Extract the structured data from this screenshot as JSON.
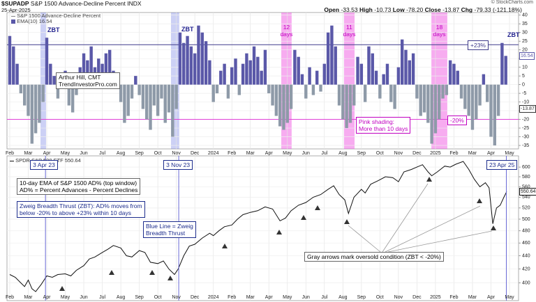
{
  "header": {
    "symbol": "$SUPADP",
    "source": "© StockCharts.com"
  },
  "chart_data": [
    {
      "type": "bar",
      "title": "S&P 1500 Advance-Decline Percent",
      "exchange": "INDX",
      "date": "25-Apr-2025",
      "quote": [
        {
          "label": "Open",
          "value": -33.53
        },
        {
          "label": "High",
          "value": -10.73
        },
        {
          "label": "Low",
          "value": -78.2,
          "value_label": "-78.20"
        },
        {
          "label": "Close",
          "value": -13.87
        },
        {
          "label": "Chg",
          "value": -79.33,
          "value_label": "-79.33 (-121.18%)"
        }
      ],
      "xlim": [
        0.85,
        28.49
      ],
      "ylim": [
        -37,
        41.5
      ],
      "xticks": [
        {
          "value": 1,
          "label": "Feb"
        },
        {
          "value": 2,
          "label": "Mar"
        },
        {
          "value": 3,
          "label": "Apr"
        },
        {
          "value": 4,
          "label": "May"
        },
        {
          "value": 5,
          "label": "Jun"
        },
        {
          "value": 6,
          "label": "Jul"
        },
        {
          "value": 7,
          "label": "Aug"
        },
        {
          "value": 8,
          "label": "Sep"
        },
        {
          "value": 9,
          "label": "Oct"
        },
        {
          "value": 10,
          "label": "Nov"
        },
        {
          "value": 11,
          "label": "Dec"
        },
        {
          "value": 12,
          "label": "2024"
        },
        {
          "value": 13,
          "label": "Feb"
        },
        {
          "value": 14,
          "label": "Mar"
        },
        {
          "value": 15,
          "label": "Apr"
        },
        {
          "value": 16,
          "label": "May"
        },
        {
          "value": 17,
          "label": "Jun"
        },
        {
          "value": 18,
          "label": "Jul"
        },
        {
          "value": 19,
          "label": "Aug"
        },
        {
          "value": 20,
          "label": "Sep"
        },
        {
          "value": 21,
          "label": "Oct"
        },
        {
          "value": 22,
          "label": "Nov"
        },
        {
          "value": 23,
          "label": "Dec"
        },
        {
          "value": 24,
          "label": "2025"
        },
        {
          "value": 25,
          "label": "Feb"
        },
        {
          "value": 26,
          "label": "Mar"
        },
        {
          "value": 27,
          "label": "Apr"
        },
        {
          "value": 28,
          "label": "May"
        }
      ],
      "yticks": [
        40,
        35,
        30,
        25,
        20,
        15,
        10,
        5,
        0,
        -5,
        -10,
        -15,
        -20,
        -25,
        -30,
        -35
      ],
      "grid": true,
      "x": [
        1.0,
        1.2,
        1.4,
        1.6,
        1.8,
        2.0,
        2.2,
        2.4,
        2.6,
        2.8,
        3.0,
        3.2,
        3.4,
        3.6,
        3.8,
        4.0,
        4.2,
        4.4,
        4.6,
        4.8,
        5.0,
        5.2,
        5.4,
        5.6,
        5.8,
        6.0,
        6.2,
        6.4,
        6.6,
        6.8,
        7.0,
        7.2,
        7.4,
        7.6,
        7.8,
        8.0,
        8.2,
        8.4,
        8.6,
        8.8,
        9.0,
        9.2,
        9.4,
        9.6,
        9.8,
        10.0,
        10.2,
        10.4,
        10.6,
        10.8,
        11.0,
        11.2,
        11.4,
        11.6,
        11.8,
        12.0,
        12.2,
        12.4,
        12.6,
        12.8,
        13.0,
        13.2,
        13.4,
        13.6,
        13.8,
        14.0,
        14.2,
        14.4,
        14.6,
        14.8,
        15.0,
        15.2,
        15.4,
        15.6,
        15.8,
        16.0,
        16.2,
        16.4,
        16.6,
        16.8,
        17.0,
        17.2,
        17.4,
        17.6,
        17.8,
        18.0,
        18.2,
        18.4,
        18.6,
        18.8,
        19.0,
        19.2,
        19.4,
        19.6,
        19.8,
        20.0,
        20.2,
        20.4,
        20.6,
        20.8,
        21.0,
        21.2,
        21.4,
        21.6,
        21.8,
        22.0,
        22.2,
        22.4,
        22.6,
        22.8,
        23.0,
        23.2,
        23.4,
        23.6,
        23.8,
        24.0,
        24.2,
        24.4,
        24.6,
        24.8,
        25.0,
        25.2,
        25.4,
        25.6,
        25.8,
        26.0,
        26.2,
        26.4,
        26.6,
        26.8,
        27.0,
        27.2,
        27.4,
        27.6,
        27.8
      ],
      "series": [
        {
          "name": "EMA(10)",
          "last_value": 16.54,
          "color": "#5a58a8",
          "negative_color": "#8e9aa8",
          "values": [
            28,
            22,
            12,
            -5,
            -12,
            -18,
            -34,
            -28,
            -22,
            -10,
            27,
            12,
            5,
            -8,
            3,
            8,
            -12,
            -16,
            -6,
            10,
            18,
            14,
            22,
            10,
            15,
            12,
            18,
            20,
            8,
            5,
            -10,
            -22,
            -18,
            -8,
            5,
            -6,
            -14,
            -20,
            -26,
            -12,
            -18,
            -8,
            -22,
            -16,
            -30,
            -14,
            30,
            24,
            28,
            22,
            18,
            34,
            30,
            25,
            14,
            -10,
            -5,
            8,
            12,
            -8,
            10,
            15,
            -6,
            12,
            18,
            14,
            22,
            16,
            8,
            20,
            -5,
            -12,
            -18,
            -24,
            -26,
            -22,
            -14,
            20,
            16,
            6,
            -8,
            10,
            -6,
            8,
            -4,
            12,
            30,
            34,
            22,
            -12,
            -20,
            -25,
            -22,
            -12,
            16,
            12,
            -10,
            22,
            18,
            8,
            -8,
            6,
            12,
            -10,
            -14,
            10,
            26,
            20,
            14,
            18,
            -8,
            -18,
            -16,
            -22,
            -34,
            -28,
            -20,
            -8,
            -6,
            14,
            12,
            8,
            -8,
            -14,
            -18,
            -26,
            -20,
            -12,
            6,
            -10,
            -30,
            -35,
            -18,
            24,
            16.54
          ]
        }
      ],
      "hlines": [
        {
          "value": 23,
          "label": "+23%",
          "color": "#3f3a8a"
        },
        {
          "value": -20,
          "label": "-20%",
          "color": "#e040d8"
        }
      ],
      "shading": [
        {
          "from": 2.66,
          "to": 2.96,
          "color": "rgba(110,120,225,0.35)"
        },
        {
          "from": 9.71,
          "to": 10.16,
          "color": "rgba(110,120,225,0.35)"
        },
        {
          "from": 15.67,
          "to": 16.23,
          "color": "rgba(240,90,225,0.5)",
          "label": [
            "12",
            "days"
          ]
        },
        {
          "from": 19.06,
          "to": 19.63,
          "color": "rgba(240,90,225,0.5)",
          "label": [
            "11",
            "days"
          ]
        },
        {
          "from": 23.78,
          "to": 24.64,
          "color": "rgba(240,90,225,0.5)",
          "label": [
            "18",
            "days"
          ]
        }
      ],
      "annotations": [
        "ZBT",
        "ZBT",
        "ZBT"
      ],
      "notes": [
        {
          "lines": [
            "Arthur Hill, CMT",
            "TrendInvestorPro.com"
          ]
        },
        {
          "lines": [
            "Pink shading:",
            "More than 10 days"
          ]
        }
      ]
    },
    {
      "type": "line",
      "title": "SPDR S&P 500 ETF",
      "xlim": [
        0.85,
        28.49
      ],
      "ylim": [
        376,
        624
      ],
      "log_scale": true,
      "xticks": [
        {
          "value": 1,
          "label": "Feb"
        },
        {
          "value": 2,
          "label": "Mar"
        },
        {
          "value": 3,
          "label": "Apr"
        },
        {
          "value": 4,
          "label": "May"
        },
        {
          "value": 5,
          "label": "Jun"
        },
        {
          "value": 6,
          "label": "Jul"
        },
        {
          "value": 7,
          "label": "Aug"
        },
        {
          "value": 8,
          "label": "Sep"
        },
        {
          "value": 9,
          "label": "Oct"
        },
        {
          "value": 10,
          "label": "Nov"
        },
        {
          "value": 11,
          "label": "Dec"
        },
        {
          "value": 12,
          "label": "2024"
        },
        {
          "value": 13,
          "label": "Feb"
        },
        {
          "value": 14,
          "label": "Mar"
        },
        {
          "value": 15,
          "label": "Apr"
        },
        {
          "value": 16,
          "label": "May"
        },
        {
          "value": 17,
          "label": "Jun"
        },
        {
          "value": 18,
          "label": "Jul"
        },
        {
          "value": 19,
          "label": "Aug"
        },
        {
          "value": 20,
          "label": "Sep"
        },
        {
          "value": 21,
          "label": "Oct"
        },
        {
          "value": 22,
          "label": "Nov"
        },
        {
          "value": 23,
          "label": "Dec"
        },
        {
          "value": 24,
          "label": "2025"
        },
        {
          "value": 25,
          "label": "Feb"
        },
        {
          "value": 26,
          "label": "Mar"
        },
        {
          "value": 27,
          "label": "Apr"
        },
        {
          "value": 28,
          "label": "May"
        }
      ],
      "yticks": [
        600,
        580,
        560,
        540,
        520,
        500,
        480,
        460,
        440,
        420,
        400
      ],
      "grid": true,
      "x": [
        1.0,
        1.3,
        1.6,
        1.8,
        2.0,
        2.2,
        2.4,
        2.7,
        3.0,
        3.3,
        3.6,
        4.0,
        4.3,
        4.6,
        5.0,
        5.3,
        5.6,
        6.0,
        6.3,
        6.6,
        7.0,
        7.3,
        7.6,
        8.0,
        8.3,
        8.6,
        9.0,
        9.3,
        9.6,
        9.9,
        10.1,
        10.4,
        10.7,
        11.0,
        11.4,
        11.8,
        12.0,
        12.3,
        12.6,
        13.0,
        13.3,
        13.6,
        14.0,
        14.4,
        14.8,
        15.2,
        15.6,
        15.9,
        16.2,
        16.6,
        17.0,
        17.4,
        17.8,
        18.2,
        18.5,
        18.8,
        19.1,
        19.3,
        19.6,
        20.0,
        20.2,
        20.5,
        20.9,
        21.3,
        21.7,
        22.0,
        22.3,
        22.7,
        23.0,
        23.3,
        23.6,
        23.8,
        24.1,
        24.5,
        24.8,
        25.1,
        25.5,
        25.8,
        26.1,
        26.4,
        26.7,
        26.9,
        27.1,
        27.3,
        27.5,
        27.7,
        27.85
      ],
      "series": [
        {
          "name": "SPDR S&P 500 ETF",
          "last_value": 550.64,
          "color": "#111111",
          "values": [
            412,
            408,
            400,
            395,
            404,
            392,
            388,
            398,
            410,
            408,
            412,
            413,
            410,
            418,
            425,
            435,
            438,
            445,
            450,
            456,
            452,
            440,
            438,
            448,
            445,
            430,
            428,
            432,
            420,
            412,
            420,
            440,
            455,
            458,
            468,
            476,
            472,
            480,
            487,
            490,
            500,
            508,
            512,
            515,
            522,
            518,
            497,
            502,
            515,
            525,
            530,
            540,
            545,
            555,
            562,
            545,
            535,
            510,
            540,
            555,
            548,
            565,
            572,
            580,
            578,
            570,
            590,
            595,
            600,
            605,
            590,
            582,
            590,
            602,
            600,
            606,
            612,
            595,
            575,
            560,
            568,
            558,
            492,
            520,
            525,
            540,
            550.64
          ]
        }
      ],
      "vlines": [
        {
          "value": 2.93,
          "label": "3 Apr 23"
        },
        {
          "value": 10.13,
          "label": "3 Nov 23"
        },
        {
          "value": 27.83,
          "label": "23 Apr 25"
        }
      ],
      "notes": [
        {
          "lines": [
            "10-day EMA of S&P 1500 AD% (top window)",
            "AD% = Percent Advances - Percent Declines"
          ]
        },
        {
          "lines": [
            "Zweig Breadth Thrust (ZBT): AD% moves from",
            "below -20% to above +23% within 10 days"
          ]
        },
        {
          "lines": [
            "Blue Line = Zweig",
            "Breadth Thrust"
          ]
        },
        {
          "lines": [
            "Gray arrows mark oversold condition (ZBT < -20%)"
          ]
        }
      ]
    }
  ]
}
